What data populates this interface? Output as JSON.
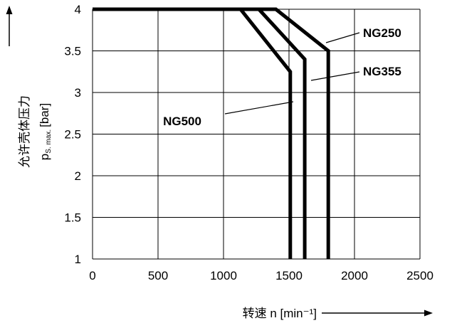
{
  "chart_data": {
    "type": "line",
    "title": "",
    "xlabel": "转速 n [min⁻¹]",
    "ylabel_cn": "允许壳体压力",
    "ylabel_sym": "p",
    "ylabel_sub": "S. max.",
    "ylabel_unit": "[bar]",
    "xlim": [
      0,
      2500
    ],
    "ylim": [
      1,
      4
    ],
    "x_ticks": [
      "0",
      "500",
      "1000",
      "1500",
      "2000",
      "2500"
    ],
    "y_ticks": [
      "1",
      "1.5",
      "2",
      "2.5",
      "3",
      "3.5",
      "4"
    ],
    "grid": true,
    "series": [
      {
        "name": "NG250",
        "points": [
          [
            0,
            4
          ],
          [
            1400,
            4
          ],
          [
            1800,
            3.5
          ],
          [
            1800,
            1
          ]
        ]
      },
      {
        "name": "NG355",
        "points": [
          [
            0,
            4
          ],
          [
            1270,
            4
          ],
          [
            1620,
            3.4
          ],
          [
            1620,
            1
          ]
        ]
      },
      {
        "name": "NG500",
        "points": [
          [
            0,
            4
          ],
          [
            1130,
            4
          ],
          [
            1510,
            3.25
          ],
          [
            1510,
            1
          ]
        ]
      }
    ]
  }
}
